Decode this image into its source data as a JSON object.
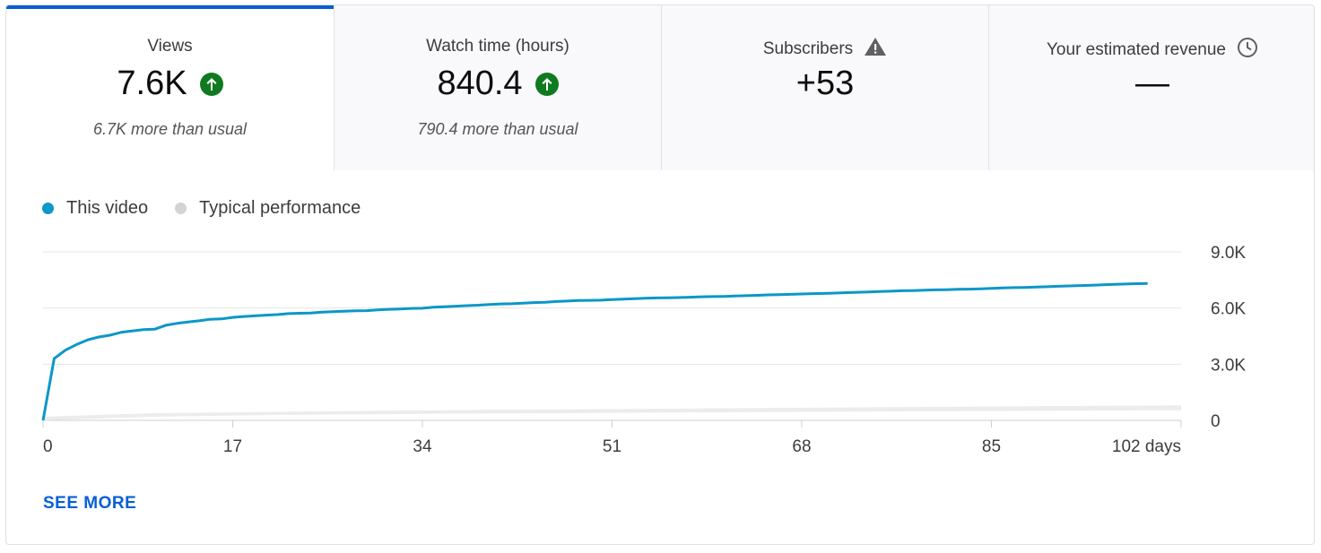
{
  "tabs": [
    {
      "label": "Views",
      "value": "7.6K",
      "sub": "6.7K more than usual",
      "trend": "up"
    },
    {
      "label": "Watch time (hours)",
      "value": "840.4",
      "sub": "790.4 more than usual",
      "trend": "up"
    },
    {
      "label": "Subscribers",
      "value": "+53",
      "sub": "",
      "icon": "warning-icon"
    },
    {
      "label": "Your estimated revenue",
      "value": "—",
      "sub": "",
      "icon": "clock-icon"
    }
  ],
  "legend": {
    "this_video": "This video",
    "typical": "Typical performance"
  },
  "colors": {
    "accent": "#065fd4",
    "this_video": "#0b97c9",
    "typical": "#d3d3d3",
    "up_badge": "#0f7a1f"
  },
  "see_more": "SEE MORE",
  "chart_data": {
    "type": "line",
    "xlabel": "",
    "ylabel": "",
    "x_ticks": [
      {
        "value": 0,
        "label": "0"
      },
      {
        "value": 17,
        "label": "17"
      },
      {
        "value": 34,
        "label": "34"
      },
      {
        "value": 51,
        "label": "51"
      },
      {
        "value": 68,
        "label": "68"
      },
      {
        "value": 85,
        "label": "85"
      },
      {
        "value": 102,
        "label": "102 days"
      }
    ],
    "y_ticks": [
      {
        "value": 0,
        "label": "0"
      },
      {
        "value": 3000,
        "label": "3.0K"
      },
      {
        "value": 6000,
        "label": "6.0K"
      },
      {
        "value": 9000,
        "label": "9.0K"
      }
    ],
    "xlim": [
      0,
      102
    ],
    "ylim": [
      0,
      9000
    ],
    "grid": true,
    "series": [
      {
        "name": "This video",
        "x": [
          0,
          1,
          2,
          3,
          4,
          5,
          6,
          7,
          8,
          9,
          10,
          11,
          12,
          13,
          14,
          15,
          16,
          17,
          18,
          19,
          20,
          21,
          22,
          23,
          24,
          25,
          26,
          27,
          28,
          29,
          30,
          31,
          32,
          33,
          34,
          35,
          36,
          37,
          38,
          39,
          40,
          41,
          42,
          43,
          44,
          45,
          46,
          47,
          48,
          49,
          50,
          51,
          52,
          53,
          54,
          55,
          56,
          57,
          58,
          59,
          60,
          61,
          62,
          63,
          64,
          65,
          66,
          67,
          68,
          69,
          70,
          71,
          72,
          73,
          74,
          75,
          76,
          77,
          78,
          79,
          80,
          81,
          82,
          83,
          84,
          85,
          86,
          87,
          88,
          89,
          90,
          91,
          92,
          93,
          94,
          95,
          96,
          97,
          98,
          99
        ],
        "y": [
          0,
          3300,
          3750,
          4050,
          4300,
          4450,
          4550,
          4700,
          4780,
          4850,
          4870,
          5080,
          5180,
          5250,
          5320,
          5400,
          5420,
          5500,
          5550,
          5580,
          5620,
          5650,
          5700,
          5720,
          5730,
          5780,
          5800,
          5830,
          5850,
          5860,
          5900,
          5930,
          5950,
          5980,
          5990,
          6040,
          6070,
          6100,
          6130,
          6150,
          6190,
          6220,
          6230,
          6260,
          6290,
          6310,
          6350,
          6370,
          6400,
          6410,
          6420,
          6450,
          6470,
          6500,
          6520,
          6540,
          6550,
          6560,
          6580,
          6600,
          6610,
          6620,
          6640,
          6660,
          6680,
          6700,
          6710,
          6730,
          6750,
          6770,
          6780,
          6800,
          6820,
          6840,
          6860,
          6880,
          6900,
          6920,
          6930,
          6950,
          6970,
          6980,
          7000,
          7010,
          7030,
          7050,
          7070,
          7090,
          7100,
          7120,
          7140,
          7160,
          7180,
          7200,
          7220,
          7240,
          7260,
          7280,
          7300,
          7310
        ]
      },
      {
        "name": "Typical performance",
        "x": [
          0,
          10,
          20,
          30,
          40,
          50,
          60,
          70,
          80,
          90,
          102
        ],
        "y_low": [
          0,
          200,
          280,
          330,
          370,
          400,
          430,
          460,
          490,
          510,
          540
        ],
        "y_high": [
          200,
          380,
          450,
          510,
          560,
          600,
          640,
          680,
          720,
          760,
          800
        ]
      }
    ]
  }
}
